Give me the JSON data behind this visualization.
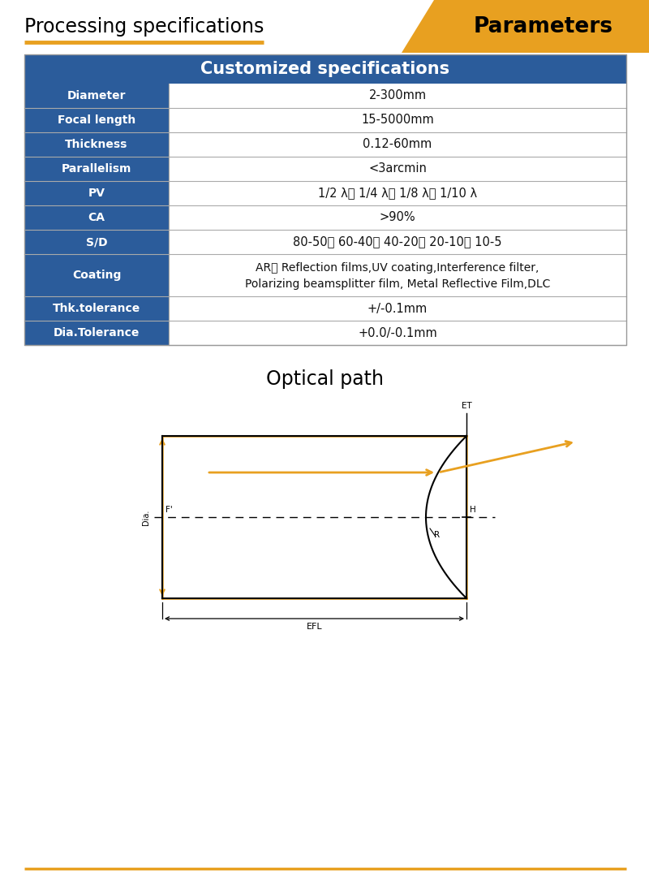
{
  "title_left": "Processing specifications",
  "title_right": "Parameters",
  "header_text": "Customized specifications",
  "table_rows": [
    [
      "Diameter",
      "2-300mm"
    ],
    [
      "Focal length",
      "15-5000mm"
    ],
    [
      "Thickness",
      "0.12-60mm"
    ],
    [
      "Parallelism",
      "<3arcmin"
    ],
    [
      "PV",
      "1/2 λ、 1/4 λ、 1/8 λ、 1/10 λ"
    ],
    [
      "CA",
      ">90%"
    ],
    [
      "S/D",
      "80-50、 60-40、 40-20、 20-10、 10-5"
    ],
    [
      "Coating",
      "AR、 Reflection films,UV coating,Interference filter,\nPolarizing beamsplitter film, Metal Reflective Film,DLC"
    ],
    [
      "Thk.tolerance",
      "+/-0.1mm"
    ],
    [
      "Dia.Tolerance",
      "+0.0/-0.1mm"
    ]
  ],
  "optical_path_title": "Optical path",
  "header_bg": "#2B5C9B",
  "row_label_bg": "#2B5C9B",
  "row_value_bg": "#FFFFFF",
  "header_text_color": "#FFFFFF",
  "label_text_color": "#FFFFFF",
  "value_text_color": "#111111",
  "orange_color": "#E8A020",
  "footer_line_color": "#E8A020",
  "bg_color": "#FFFFFF"
}
